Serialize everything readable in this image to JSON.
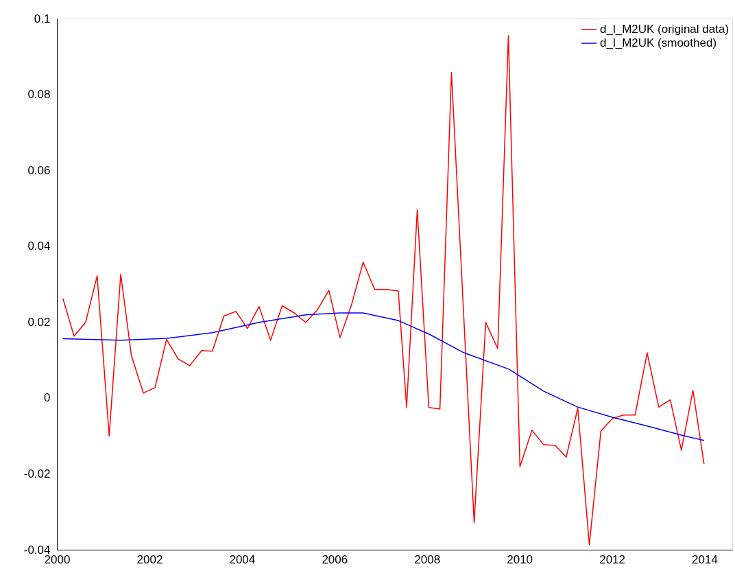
{
  "chart_data": {
    "type": "line",
    "xlim": [
      2000,
      2014.6
    ],
    "ylim": [
      -0.04,
      0.1
    ],
    "xticks": [
      2000,
      2002,
      2004,
      2006,
      2008,
      2010,
      2012,
      2014
    ],
    "yticks": [
      -0.04,
      -0.02,
      0,
      0.02,
      0.04,
      0.06,
      0.08,
      0.1
    ],
    "grid": false,
    "legend": "top right",
    "line_style": "solid",
    "marker": "none",
    "series": [
      {
        "name": "d_l_M2UK (original data)",
        "color": "#ff0000",
        "x": [
          2000.13,
          2000.37,
          2000.62,
          2000.87,
          2001.13,
          2001.38,
          2001.61,
          2001.87,
          2002.12,
          2002.37,
          2002.62,
          2002.87,
          2003.13,
          2003.36,
          2003.61,
          2003.87,
          2004.12,
          2004.37,
          2004.62,
          2004.87,
          2005.13,
          2005.38,
          2005.63,
          2005.88,
          2006.12,
          2006.37,
          2006.62,
          2006.87,
          2007.12,
          2007.38,
          2007.56,
          2007.79,
          2008.04,
          2008.28,
          2008.53,
          2009.02,
          2009.27,
          2009.53,
          2009.76,
          2010.01,
          2010.27,
          2010.52,
          2010.77,
          2011.01,
          2011.26,
          2011.51,
          2011.76,
          2012.01,
          2012.25,
          2012.5,
          2012.76,
          2013.01,
          2013.26,
          2013.5,
          2013.75,
          2013.99
        ],
        "values": [
          0.0262,
          0.0163,
          0.0199,
          0.0322,
          -0.01,
          0.0326,
          0.0112,
          0.0013,
          0.0027,
          0.0154,
          0.0103,
          0.0085,
          0.0125,
          0.0123,
          0.0216,
          0.0228,
          0.0183,
          0.0241,
          0.0152,
          0.0243,
          0.0224,
          0.0199,
          0.0232,
          0.0284,
          0.0159,
          0.0246,
          0.0358,
          0.0286,
          0.0286,
          0.0282,
          -0.0025,
          0.0496,
          -0.0025,
          -0.0029,
          0.0858,
          -0.0329,
          0.0199,
          0.013,
          0.0955,
          -0.0181,
          -0.0085,
          -0.0123,
          -0.0125,
          -0.0156,
          -0.0027,
          -0.0387,
          -0.0087,
          -0.0054,
          -0.0045,
          -0.0045,
          0.0119,
          -0.0024,
          -0.0005,
          -0.0138,
          0.002,
          -0.0174
        ]
      },
      {
        "name": "d_l_M2UK (smoothed)",
        "color": "#0000ff",
        "x": [
          2000.13,
          2001.38,
          2002.37,
          2003.36,
          2004.37,
          2005.38,
          2006.12,
          2006.62,
          2007.38,
          2008.05,
          2008.8,
          2009.77,
          2010.52,
          2011.26,
          2012.01,
          2012.76,
          2013.5,
          2013.99
        ],
        "values": [
          0.0156,
          0.0152,
          0.0157,
          0.0172,
          0.0199,
          0.0219,
          0.0224,
          0.0224,
          0.0204,
          0.0168,
          0.0119,
          0.0076,
          0.0018,
          -0.0024,
          -0.0051,
          -0.0074,
          -0.0098,
          -0.0112
        ]
      }
    ]
  }
}
